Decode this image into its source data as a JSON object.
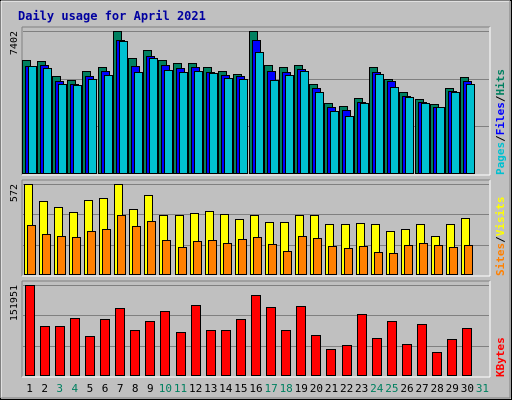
{
  "chart_data": {
    "type": "bar",
    "title": "Daily usage for April 2021",
    "categories": [
      "1",
      "2",
      "3",
      "4",
      "5",
      "6",
      "7",
      "8",
      "9",
      "10",
      "11",
      "12",
      "13",
      "14",
      "15",
      "16",
      "17",
      "18",
      "19",
      "20",
      "21",
      "22",
      "23",
      "24",
      "25",
      "26",
      "27",
      "28",
      "29",
      "30",
      "31"
    ],
    "weekend_days": [
      "3",
      "4",
      "10",
      "11",
      "17",
      "18",
      "24",
      "25",
      "31"
    ],
    "panels": [
      {
        "id": "hits-files-pages",
        "ymax": 7402,
        "ymax_label": "7402",
        "right_labels": [
          "Pages",
          "/",
          "Files",
          "/",
          "Hits"
        ],
        "right_label_colors": [
          "#00c0d0",
          "#000000",
          "#0000ff",
          "#000000",
          "#008060"
        ],
        "series": [
          {
            "name": "Hits",
            "color": "#008060",
            "values": [
              5900,
              5850,
              5050,
              4850,
              5350,
              5550,
              7400,
              6000,
              6400,
              5900,
              5750,
              5750,
              5550,
              5350,
              5200,
              7400,
              5650,
              5550,
              5650,
              4650,
              3650,
              3500,
              3950,
              5550,
              4900,
              4250,
              3900,
              3600,
              4450,
              5000,
              0
            ]
          },
          {
            "name": "Files",
            "color": "#0000ff",
            "values": [
              5600,
              5650,
              4800,
              4650,
              5050,
              5350,
              6950,
              5600,
              6100,
              5650,
              5500,
              5550,
              5300,
              5150,
              5050,
              6950,
              5350,
              5300,
              5450,
              4450,
              3450,
              3300,
              3750,
              5300,
              4800,
              4050,
              3750,
              3450,
              4300,
              4800,
              0
            ]
          },
          {
            "name": "Pages",
            "color": "#00c0d0",
            "values": [
              5600,
              5500,
              4650,
              4600,
              4900,
              5100,
              6900,
              5300,
              6000,
              5400,
              5300,
              5350,
              5250,
              4950,
              4900,
              6300,
              4850,
              5100,
              5350,
              4250,
              3250,
              3000,
              3650,
              5200,
              4500,
              4000,
              3650,
              3450,
              4250,
              4650,
              0
            ]
          }
        ]
      },
      {
        "id": "visits-sites",
        "ymax": 572,
        "ymax_label": "572",
        "right_labels": [
          "Sites",
          "/",
          "Visits"
        ],
        "right_label_colors": [
          "#ff8000",
          "#000000",
          "#ffff00"
        ],
        "series": [
          {
            "name": "Visits",
            "color": "#ffff00",
            "values": [
              570,
              465,
              430,
              395,
              472,
              485,
              572,
              415,
              500,
              375,
              380,
              390,
              405,
              385,
              355,
              380,
              335,
              335,
              380,
              375,
              320,
              320,
              325,
              320,
              275,
              290,
              318,
              245,
              320,
              358,
              0
            ]
          },
          {
            "name": "Sites",
            "color": "#ff8000",
            "values": [
              315,
              255,
              245,
              240,
              275,
              292,
              375,
              305,
              340,
              220,
              178,
              215,
              218,
              200,
              225,
              240,
              195,
              150,
              245,
              235,
              180,
              170,
              185,
              142,
              140,
              190,
              200,
              190,
              175,
              188,
              0
            ]
          }
        ]
      },
      {
        "id": "kbytes",
        "ymax": 151951,
        "ymax_label": "151951",
        "right_labels": [
          "KBytes"
        ],
        "right_label_colors": [
          "#ff0000"
        ],
        "series": [
          {
            "name": "KBytes",
            "color": "#ff0000",
            "values": [
              151951,
              84000,
              84000,
              97000,
              67000,
              95000,
              114000,
              76000,
              92000,
              109000,
              73000,
              119000,
              77000,
              76000,
              95000,
              136000,
              116000,
              76000,
              117000,
              68000,
              45000,
              52000,
              103000,
              64000,
              92000,
              53000,
              86000,
              40000,
              61000,
              80000,
              0
            ]
          }
        ]
      }
    ]
  }
}
